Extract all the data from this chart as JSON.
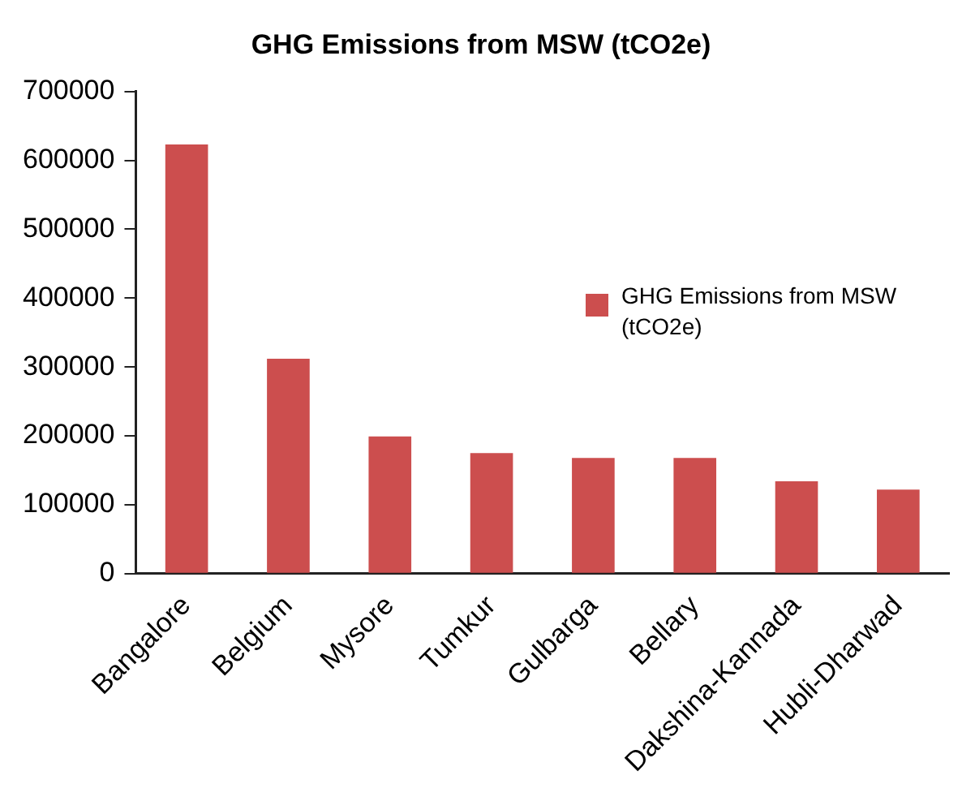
{
  "chart_data": {
    "type": "bar",
    "title": "GHG Emissions from MSW (tCO2e)",
    "categories": [
      "Bangalore",
      "Belgium",
      "Mysore",
      "Tumkur",
      "Gulbarga",
      "Bellary",
      "Dakshina-Kannada",
      "Hubli-Dharwad"
    ],
    "series": [
      {
        "name": "GHG Emissions from MSW (tCO2e)",
        "color": "#cc4e4e",
        "values": [
          623000,
          312000,
          199000,
          175000,
          168000,
          168000,
          134000,
          122000
        ]
      }
    ],
    "ylim": [
      0,
      700000
    ],
    "yticks": [
      0,
      100000,
      200000,
      300000,
      400000,
      500000,
      600000,
      700000
    ],
    "grid": false,
    "legend": "right"
  }
}
